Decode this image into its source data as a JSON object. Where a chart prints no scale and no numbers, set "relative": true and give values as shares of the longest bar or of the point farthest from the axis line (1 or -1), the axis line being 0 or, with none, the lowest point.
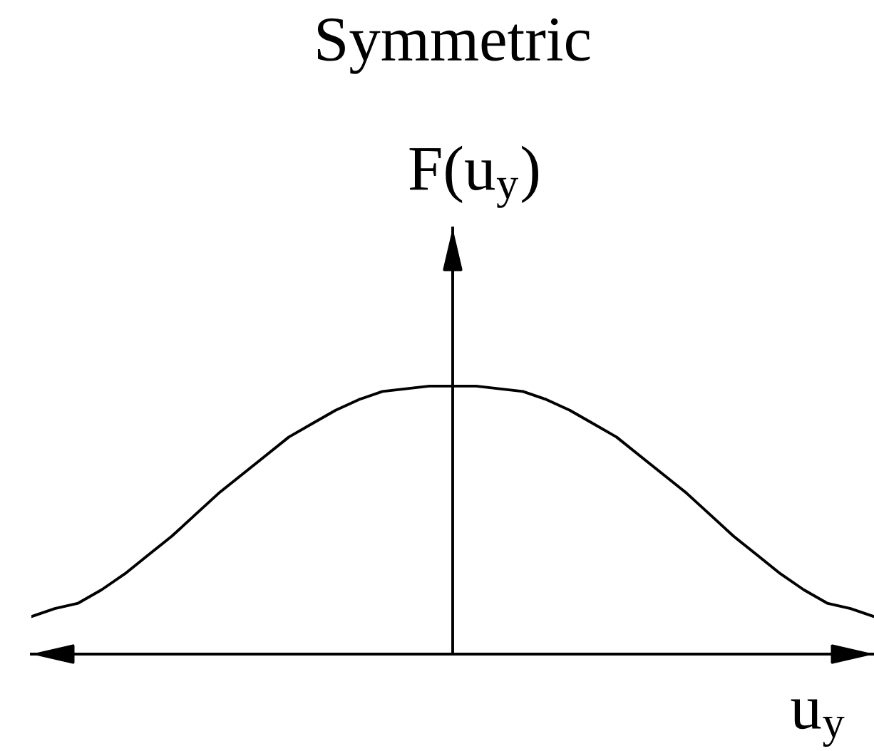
{
  "chart_data": {
    "type": "line",
    "title": "Symmetric",
    "xlabel": "u$_{y}$",
    "ylabel": "F(u$_{y}$)",
    "relative": true,
    "color": "#000000",
    "categories": [
      null,
      null,
      null,
      null,
      null,
      null,
      null,
      null,
      null,
      null,
      null,
      null,
      null,
      null,
      null,
      null,
      null,
      null,
      null,
      null,
      null,
      null,
      null,
      null,
      null,
      null,
      null,
      null,
      null,
      null,
      null,
      null,
      null,
      null,
      null,
      null,
      null
    ],
    "values": [
      0.14,
      0.17,
      0.19,
      0.24,
      0.3,
      0.37,
      0.44,
      0.52,
      0.6,
      0.67,
      0.74,
      0.81,
      0.86,
      0.91,
      0.95,
      0.98,
      0.99,
      1.0,
      1.0,
      1.0,
      0.99,
      0.98,
      0.95,
      0.91,
      0.86,
      0.81,
      0.74,
      0.67,
      0.6,
      0.52,
      0.44,
      0.37,
      0.3,
      0.24,
      0.19,
      0.17,
      0.14
    ]
  }
}
